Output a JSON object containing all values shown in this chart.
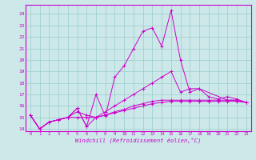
{
  "title": "",
  "xlabel": "Windchill (Refroidissement éolien,°C)",
  "ylabel": "",
  "bg_color": "#cce8e8",
  "grid_color": "#99cccc",
  "line_color": "#cc00cc",
  "xlim": [
    -0.5,
    23.5
  ],
  "ylim": [
    13.8,
    24.8
  ],
  "yticks": [
    14,
    15,
    16,
    17,
    18,
    19,
    20,
    21,
    22,
    23,
    24
  ],
  "xticks": [
    0,
    1,
    2,
    3,
    4,
    5,
    6,
    7,
    8,
    9,
    10,
    11,
    12,
    13,
    14,
    15,
    16,
    17,
    18,
    19,
    20,
    21,
    22,
    23
  ],
  "lines": [
    {
      "x": [
        0,
        1,
        2,
        3,
        4,
        5,
        6,
        7,
        8,
        9,
        10,
        11,
        12,
        13,
        14,
        15,
        16,
        17,
        18,
        21,
        22,
        23
      ],
      "y": [
        15.2,
        14.0,
        14.6,
        14.8,
        15.0,
        15.8,
        14.2,
        17.0,
        15.1,
        18.5,
        19.5,
        21.0,
        22.5,
        22.8,
        21.2,
        24.3,
        20.0,
        17.2,
        17.5,
        16.5,
        16.5,
        16.3
      ]
    },
    {
      "x": [
        0,
        1,
        2,
        3,
        4,
        5,
        6,
        7,
        8,
        9,
        10,
        11,
        12,
        13,
        14,
        15,
        16,
        17,
        18,
        19,
        20,
        21,
        22,
        23
      ],
      "y": [
        15.2,
        14.0,
        14.6,
        14.8,
        15.0,
        15.0,
        15.0,
        15.0,
        15.2,
        15.4,
        15.6,
        15.8,
        16.0,
        16.2,
        16.3,
        16.4,
        16.4,
        16.4,
        16.4,
        16.4,
        16.4,
        16.4,
        16.4,
        16.3
      ]
    },
    {
      "x": [
        0,
        1,
        2,
        3,
        4,
        5,
        6,
        7,
        8,
        9,
        10,
        11,
        12,
        13,
        14,
        15,
        16,
        17,
        18,
        19,
        20,
        21,
        22,
        23
      ],
      "y": [
        15.2,
        14.0,
        14.6,
        14.8,
        15.0,
        15.5,
        15.2,
        15.0,
        15.2,
        15.5,
        15.7,
        16.0,
        16.2,
        16.4,
        16.5,
        16.5,
        16.5,
        16.5,
        16.5,
        16.5,
        16.5,
        16.5,
        16.5,
        16.3
      ]
    },
    {
      "x": [
        0,
        1,
        2,
        3,
        4,
        5,
        6,
        7,
        8,
        9,
        10,
        11,
        12,
        13,
        14,
        15,
        16,
        17,
        18,
        19,
        20,
        21,
        22,
        23
      ],
      "y": [
        15.2,
        14.0,
        14.6,
        14.8,
        15.0,
        15.8,
        14.2,
        15.0,
        15.5,
        16.0,
        16.5,
        17.0,
        17.5,
        18.0,
        18.5,
        19.0,
        17.2,
        17.5,
        17.5,
        16.8,
        16.6,
        16.8,
        16.6,
        16.3
      ]
    }
  ]
}
